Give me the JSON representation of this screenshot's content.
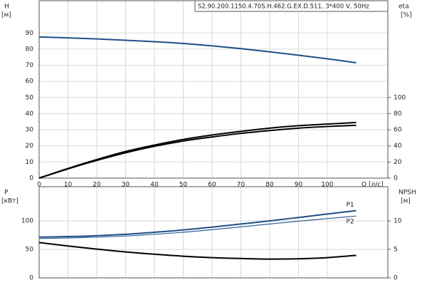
{
  "chart_data": [
    {
      "type": "line",
      "title": "S2.90.200.1150.4.70S.H.462.G.EX.D.511, 3*400 V, 50Hz",
      "ylabel": "H",
      "ylabel_unit": "[м]",
      "y2label": "eta",
      "y2label_unit": "[%]",
      "xlabel": "Q [л/с]",
      "x": [
        0,
        10,
        20,
        30,
        40,
        50,
        60,
        70,
        80,
        90,
        100,
        110
      ],
      "xlim": [
        0,
        121
      ],
      "xticks": [
        0,
        10,
        20,
        30,
        40,
        50,
        60,
        70,
        80,
        90,
        100
      ],
      "ylim": [
        0,
        110
      ],
      "yticks": [
        0,
        10,
        20,
        30,
        40,
        50,
        60,
        70,
        80,
        90
      ],
      "y2lim": [
        0,
        220
      ],
      "y2ticks": [
        0,
        20,
        40,
        60,
        80,
        100
      ],
      "grid": true,
      "series": [
        {
          "color": "#1f4f86",
          "values": [
            87.5,
            87,
            86.3,
            85.5,
            84.6,
            83.5,
            82,
            80.3,
            78.3,
            76.2,
            74,
            71.5
          ]
        },
        {
          "color": "#000000",
          "axis": "y2",
          "values": [
            0,
            12,
            23,
            33,
            41,
            48,
            53.5,
            58,
            62,
            65,
            67,
            69
          ]
        },
        {
          "color": "#000000",
          "axis": "y2",
          "values": [
            0,
            11.5,
            22,
            31.5,
            39.5,
            46,
            51,
            55.5,
            59,
            62,
            64,
            65.5
          ]
        }
      ]
    },
    {
      "type": "line",
      "ylabel": "P",
      "ylabel_unit": "[кВт]",
      "y2label": "NPSH",
      "y2label_unit": "[м]",
      "x": [
        0,
        10,
        20,
        30,
        40,
        50,
        60,
        70,
        80,
        90,
        100,
        110
      ],
      "xlim": [
        0,
        121
      ],
      "ylim": [
        0,
        160
      ],
      "yticks": [
        0,
        50,
        100
      ],
      "y2lim": [
        0,
        16
      ],
      "y2ticks": [
        0,
        5,
        10
      ],
      "grid": true,
      "series": [
        {
          "name": "P1",
          "color": "#1f4f86",
          "values": [
            71.5,
            72.5,
            74,
            76.5,
            80,
            84,
            89,
            94.5,
            100,
            106,
            112,
            118
          ]
        },
        {
          "name": "P2",
          "color": "#2b6096",
          "values": [
            69,
            70,
            71.5,
            73.5,
            76.5,
            80,
            84.5,
            89.5,
            94.5,
            99.5,
            104,
            108.5
          ]
        },
        {
          "color": "#000000",
          "axis": "y2",
          "values": [
            6.2,
            5.6,
            5.05,
            4.55,
            4.15,
            3.8,
            3.55,
            3.4,
            3.3,
            3.35,
            3.55,
            3.95
          ]
        }
      ]
    }
  ]
}
